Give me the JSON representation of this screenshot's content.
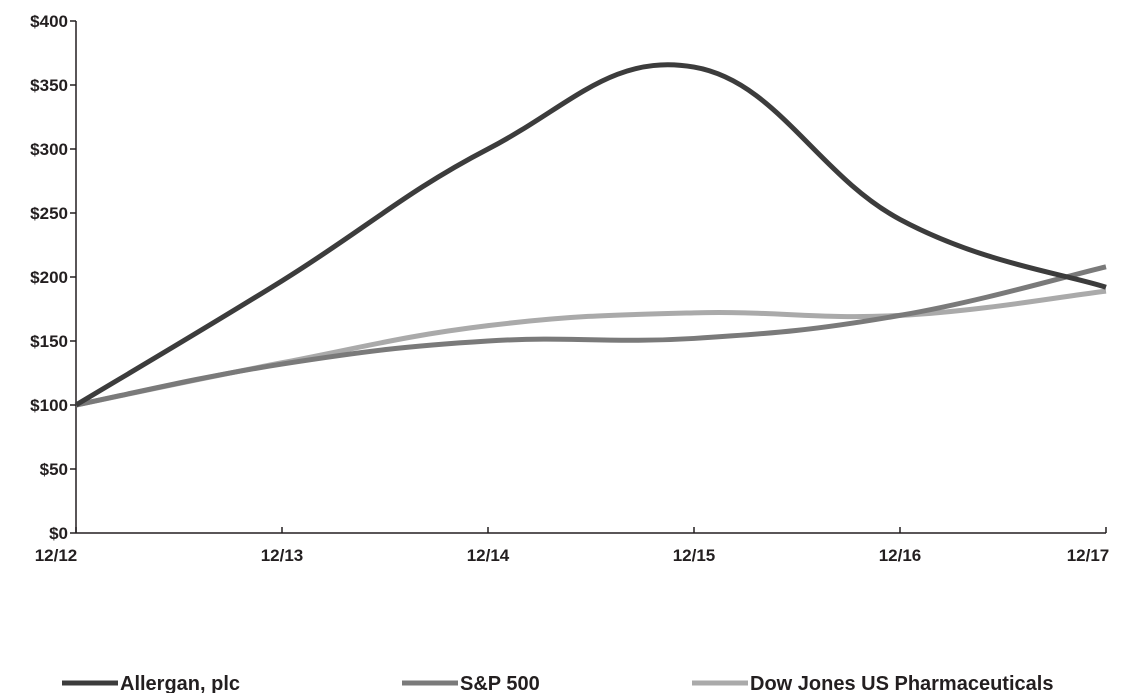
{
  "chart_data": {
    "type": "line",
    "categories": [
      "12/12",
      "12/13",
      "12/14",
      "12/15",
      "12/16",
      "12/17"
    ],
    "ylim": [
      0,
      400
    ],
    "y_ticks": [
      {
        "value": 0,
        "label": "$0"
      },
      {
        "value": 50,
        "label": "$50"
      },
      {
        "value": 100,
        "label": "$100"
      },
      {
        "value": 150,
        "label": "$150"
      },
      {
        "value": 200,
        "label": "$200"
      },
      {
        "value": 250,
        "label": "$250"
      },
      {
        "value": 300,
        "label": "$300"
      },
      {
        "value": 350,
        "label": "$350"
      },
      {
        "value": 400,
        "label": "$400"
      }
    ],
    "grid": false,
    "legend_position": "bottom",
    "series": [
      {
        "name": "Allergan, plc",
        "color": "#3c3c3c",
        "values": [
          100,
          197,
          300,
          364,
          245,
          192
        ]
      },
      {
        "name": "S&P 500",
        "color": "#7a7a7a",
        "values": [
          100,
          132,
          150,
          152,
          170,
          208
        ]
      },
      {
        "name": "Dow Jones US Pharmaceuticals",
        "color": "#aaaaaa",
        "values": [
          100,
          133,
          162,
          172,
          170,
          189
        ]
      }
    ]
  }
}
